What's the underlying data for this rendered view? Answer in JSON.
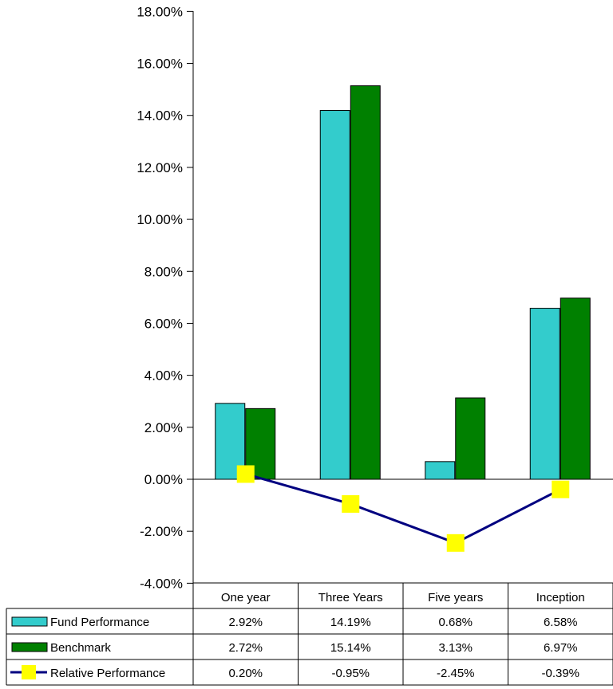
{
  "chart_data": {
    "type": "bar",
    "title": "",
    "xlabel": "",
    "ylabel": "",
    "categories": [
      "One year",
      "Three Years",
      "Five years",
      "Inception"
    ],
    "ylim": [
      -4,
      18
    ],
    "y_ticks": [
      {
        "value": 18,
        "label": "18.00%"
      },
      {
        "value": 16,
        "label": "16.00%"
      },
      {
        "value": 14,
        "label": "14.00%"
      },
      {
        "value": 12,
        "label": "12.00%"
      },
      {
        "value": 10,
        "label": "10.00%"
      },
      {
        "value": 8,
        "label": "8.00%"
      },
      {
        "value": 6,
        "label": "6.00%"
      },
      {
        "value": 4,
        "label": "4.00%"
      },
      {
        "value": 2,
        "label": "2.00%"
      },
      {
        "value": 0,
        "label": "0.00%"
      },
      {
        "value": -2,
        "label": "-2.00%"
      },
      {
        "value": -4,
        "label": "-4.00%"
      }
    ],
    "grid": false,
    "legend": "data-table-left",
    "series": [
      {
        "name": "Fund Performance",
        "kind": "bar",
        "color": "#33CCCC",
        "values": [
          2.92,
          14.19,
          0.68,
          6.58
        ],
        "labels": [
          "2.92%",
          "14.19%",
          "0.68%",
          "6.58%"
        ]
      },
      {
        "name": "Benchmark",
        "kind": "bar",
        "color": "#008000",
        "values": [
          2.72,
          15.14,
          3.13,
          6.97
        ],
        "labels": [
          "2.72%",
          "15.14%",
          "3.13%",
          "6.97%"
        ]
      },
      {
        "name": "Relative Performance",
        "kind": "line",
        "color": "#000080",
        "marker_color": "#FFFF00",
        "values": [
          0.2,
          -0.95,
          -2.45,
          -0.39
        ],
        "labels": [
          "0.20%",
          "-0.95%",
          "-2.45%",
          "-0.39%"
        ]
      }
    ]
  }
}
